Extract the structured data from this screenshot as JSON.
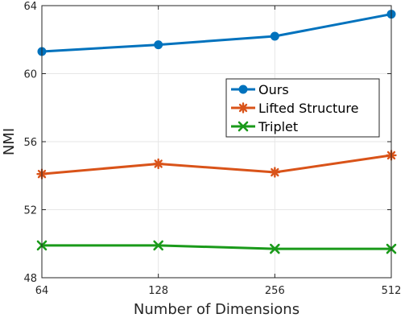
{
  "chart_data": {
    "type": "line",
    "title": "",
    "xlabel": "Number of Dimensions",
    "ylabel": "NMI",
    "categories": [
      "64",
      "128",
      "256",
      "512"
    ],
    "ylim": [
      48,
      64
    ],
    "yticks": [
      "48",
      "52",
      "56",
      "60",
      "64"
    ],
    "grid": true,
    "legend_position": "center-right",
    "series": [
      {
        "name": "Ours",
        "values": [
          61.3,
          61.7,
          62.2,
          63.5
        ],
        "color": "#0072BD",
        "marker": "circle"
      },
      {
        "name": "Lifted Structure",
        "values": [
          54.1,
          54.7,
          54.2,
          55.2
        ],
        "color": "#D95319",
        "marker": "asterisk"
      },
      {
        "name": "Triplet",
        "values": [
          49.9,
          49.9,
          49.7,
          49.7
        ],
        "color": "#1A9A1A",
        "marker": "x"
      }
    ]
  }
}
